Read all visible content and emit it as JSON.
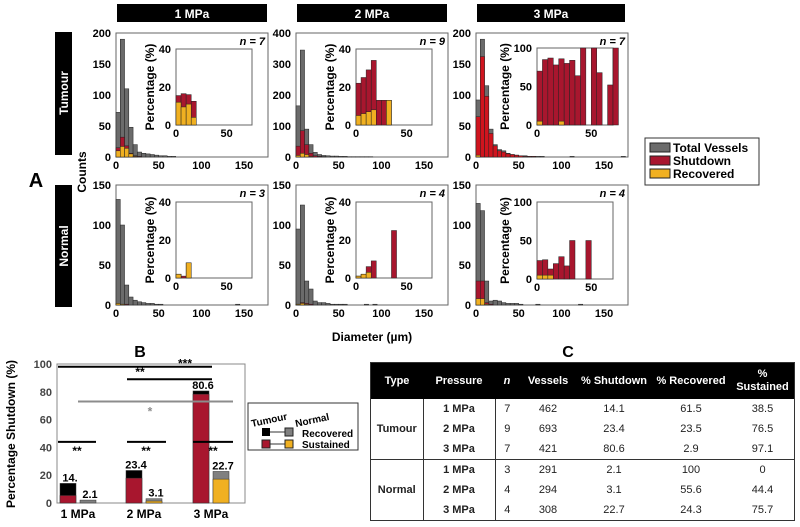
{
  "panel_a": {
    "label": "A",
    "column_titles": [
      "1 MPa",
      "2 MPa",
      "3 MPa"
    ],
    "row_labels": [
      "Tumour",
      "Normal"
    ],
    "ylabel": "Counts",
    "xlabel": "Diameter (µm)",
    "inset_ylabel": "Percentage (%)",
    "legend": [
      "Total Vessels",
      "Shutdown",
      "Recovered"
    ]
  },
  "colors": {
    "total": "#6b6b6b",
    "shutdown": "#a8162e",
    "shutdown_bright": "#d0141e",
    "recovered": "#f0b021",
    "tumour_recovered": "#000000",
    "normal_recovered": "#808080",
    "tumour_sustained": "#a8162e",
    "normal_sustained": "#f0b021"
  },
  "chart_data": [
    {
      "type": "bar",
      "row": "Tumour",
      "pressure": "1 MPa",
      "n_label": "n = 7",
      "bin_width": 5,
      "xlim": [
        0,
        178
      ],
      "xticks": [
        0,
        50,
        100,
        150
      ],
      "ylim": [
        0,
        200
      ],
      "yticks": [
        0,
        50,
        100,
        150,
        200
      ],
      "total": [
        72,
        190,
        110,
        48,
        20,
        8,
        6,
        5,
        4,
        3,
        2,
        2,
        1,
        1
      ],
      "shutdown": [
        15,
        32,
        18,
        6,
        2,
        1
      ],
      "recovered": [
        10,
        17,
        14,
        5,
        1
      ],
      "inset": {
        "xlim": [
          0,
          75
        ],
        "xticks": [
          0,
          50
        ],
        "ylim": [
          0,
          40
        ],
        "yticks": [
          0,
          20,
          40
        ],
        "shutdown_pct": [
          15.5,
          16.5,
          16,
          12.5
        ],
        "recovered_pct": [
          12,
          9.5,
          11,
          4
        ]
      }
    },
    {
      "type": "bar",
      "row": "Tumour",
      "pressure": "2 MPa",
      "n_label": "n = 9",
      "bin_width": 5,
      "xlim": [
        0,
        178
      ],
      "xticks": [
        0,
        50,
        100,
        150
      ],
      "ylim": [
        0,
        400
      ],
      "yticks": [
        0,
        100,
        200,
        300,
        400
      ],
      "total": [
        165,
        345,
        90,
        40,
        15,
        8,
        5,
        4,
        3,
        3,
        2,
        2,
        1,
        1,
        1,
        1,
        1,
        1
      ],
      "shutdown": [
        35,
        85,
        40,
        12,
        4,
        2,
        1
      ],
      "recovered": [
        5,
        12,
        8,
        2
      ],
      "inset": {
        "xlim": [
          0,
          75
        ],
        "xticks": [
          0,
          50
        ],
        "ylim": [
          0,
          40
        ],
        "yticks": [
          0,
          20,
          40
        ],
        "shutdown_pct": [
          22,
          25,
          29,
          34,
          13,
          13,
          13
        ],
        "recovered_pct": [
          5,
          6,
          7,
          8,
          0,
          0,
          13
        ]
      }
    },
    {
      "type": "bar",
      "row": "Tumour",
      "pressure": "3 MPa",
      "n_label": "n = 7",
      "bin_width": 5,
      "xlim": [
        0,
        178
      ],
      "xticks": [
        0,
        50,
        100,
        150
      ],
      "ylim": [
        0,
        200
      ],
      "yticks": [
        0,
        50,
        100,
        150,
        200
      ],
      "total": [
        92,
        190,
        115,
        45,
        20,
        12,
        10,
        6,
        4,
        3,
        2,
        2,
        1,
        1,
        1,
        1,
        0,
        0,
        0,
        0,
        0,
        0,
        1,
        0,
        0,
        0,
        0,
        0,
        0,
        0,
        0,
        0,
        0,
        0,
        1
      ],
      "shutdown": [
        65,
        162,
        98,
        38,
        18,
        10,
        8,
        5,
        4,
        3,
        2,
        1,
        1,
        1
      ],
      "recovered": [
        3,
        0,
        0
      ],
      "inset": {
        "xlim": [
          0,
          70
        ],
        "xticks": [
          0,
          50
        ],
        "ylim": [
          0,
          100
        ],
        "yticks": [
          0,
          50,
          100
        ],
        "shutdown_pct": [
          70,
          85,
          87,
          78,
          86,
          80,
          84,
          64,
          100,
          0,
          100,
          68,
          0,
          52,
          100
        ],
        "recovered_pct": [
          5,
          0,
          0,
          0,
          5
        ]
      }
    },
    {
      "type": "bar",
      "row": "Normal",
      "pressure": "1 MPa",
      "n_label": "n = 3",
      "bin_width": 5,
      "xlim": [
        0,
        178
      ],
      "xticks": [
        0,
        50,
        100,
        150
      ],
      "ylim": [
        0,
        150
      ],
      "yticks": [
        0,
        50,
        100,
        150
      ],
      "total": [
        132,
        100,
        25,
        10,
        6,
        4,
        3,
        2,
        2,
        1,
        1,
        0,
        0,
        0,
        0,
        0,
        0,
        0,
        0,
        0,
        0,
        0,
        0,
        0,
        0,
        0,
        0,
        0,
        1
      ],
      "shutdown": [
        2,
        1,
        1
      ],
      "recovered": [
        2,
        1,
        0
      ],
      "inset": {
        "xlim": [
          0,
          75
        ],
        "xticks": [
          0,
          50
        ],
        "ylim": [
          0,
          40
        ],
        "yticks": [
          0,
          20,
          40
        ],
        "shutdown_pct": [
          2,
          1,
          8
        ],
        "recovered_pct": [
          2,
          0,
          8
        ]
      }
    },
    {
      "type": "bar",
      "row": "Normal",
      "pressure": "2 MPa",
      "n_label": "n = 4",
      "bin_width": 5,
      "xlim": [
        0,
        178
      ],
      "xticks": [
        0,
        50,
        100,
        150
      ],
      "ylim": [
        0,
        150
      ],
      "yticks": [
        0,
        50,
        100,
        150
      ],
      "total": [
        95,
        125,
        30,
        20,
        5,
        3,
        3,
        2,
        1,
        1,
        1,
        1,
        0,
        0,
        0,
        0,
        1,
        0,
        1
      ],
      "shutdown": [
        1,
        3,
        2,
        1
      ],
      "recovered": [
        1,
        2,
        1
      ],
      "inset": {
        "xlim": [
          0,
          75
        ],
        "xticks": [
          0,
          50
        ],
        "ylim": [
          0,
          40
        ],
        "yticks": [
          0,
          20,
          40
        ],
        "shutdown_pct": [
          1,
          2,
          6,
          9,
          0,
          0,
          0,
          25
        ],
        "recovered_pct": [
          1,
          2,
          3
        ]
      }
    },
    {
      "type": "bar",
      "row": "Normal",
      "pressure": "3 MPa",
      "n_label": "n = 4",
      "bin_width": 5,
      "xlim": [
        0,
        178
      ],
      "xticks": [
        0,
        50,
        100,
        150
      ],
      "ylim": [
        0,
        150
      ],
      "yticks": [
        0,
        50,
        100,
        150
      ],
      "total": [
        127,
        118,
        30,
        5,
        6,
        5,
        3,
        2,
        2,
        2,
        1,
        0,
        0,
        0,
        1,
        0,
        0,
        0,
        0,
        0,
        0,
        0,
        0,
        0,
        1
      ],
      "shutdown": [
        30,
        30,
        3,
        1
      ],
      "recovered": [
        8,
        8,
        1
      ],
      "inset": {
        "xlim": [
          0,
          70
        ],
        "xticks": [
          0,
          50
        ],
        "ylim": [
          0,
          100
        ],
        "yticks": [
          0,
          50,
          100
        ],
        "shutdown_pct": [
          24,
          25,
          13,
          20,
          29,
          17,
          50,
          0,
          0,
          50
        ],
        "recovered_pct": [
          5,
          5,
          5
        ]
      }
    },
    {
      "type": "bar",
      "title": "B",
      "ylabel": "Percentage Shutdown (%)",
      "ylim": [
        0,
        100
      ],
      "yticks": [
        0,
        20,
        40,
        60,
        80,
        100
      ],
      "categories": [
        "1 MPa",
        "2 MPa",
        "3 MPa"
      ],
      "series": [
        {
          "name": "Tumour",
          "shutdown": [
            14.1,
            23.4,
            80.6
          ],
          "sustained": [
            5.4,
            17.9,
            78.3
          ],
          "data_labels": [
            "14.",
            "23.4",
            "80.6"
          ]
        },
        {
          "name": "Normal",
          "shutdown": [
            2.1,
            3.1,
            22.7
          ],
          "sustained": [
            0,
            1.4,
            17.2
          ],
          "data_labels": [
            "2.1",
            "3.1",
            "22.7"
          ]
        }
      ],
      "legend": {
        "groups": [
          "Tumour",
          "Normal"
        ],
        "rows": [
          "Recovered",
          "Sustained"
        ]
      },
      "significance": [
        {
          "label": "**",
          "level": 98,
          "color": "#000000"
        },
        {
          "label": "***",
          "level": 89,
          "color": "#000000"
        },
        {
          "label": "*",
          "level": 73,
          "color": "#8c8c8c"
        },
        {
          "label": "**",
          "level": 44,
          "color": "#000000"
        },
        {
          "label": "**",
          "level": 44,
          "color": "#000000"
        },
        {
          "label": "**",
          "level": 44,
          "color": "#000000"
        }
      ]
    }
  ],
  "table": {
    "title": "C",
    "headers": [
      "Type",
      "Pressure",
      "n",
      "Vessels",
      "% Shutdown",
      "% Recovered",
      "% Sustained"
    ],
    "groups": [
      {
        "type": "Tumour",
        "rows": [
          [
            "1 MPa",
            "7",
            "462",
            "14.1",
            "61.5",
            "38.5"
          ],
          [
            "2 MPa",
            "9",
            "693",
            "23.4",
            "23.5",
            "76.5"
          ],
          [
            "3 MPa",
            "7",
            "421",
            "80.6",
            "2.9",
            "97.1"
          ]
        ]
      },
      {
        "type": "Normal",
        "rows": [
          [
            "1 MPa",
            "3",
            "291",
            "2.1",
            "100",
            "0"
          ],
          [
            "2 MPa",
            "4",
            "294",
            "3.1",
            "55.6",
            "44.4"
          ],
          [
            "3 MPa",
            "4",
            "308",
            "22.7",
            "24.3",
            "75.7"
          ]
        ]
      }
    ]
  }
}
